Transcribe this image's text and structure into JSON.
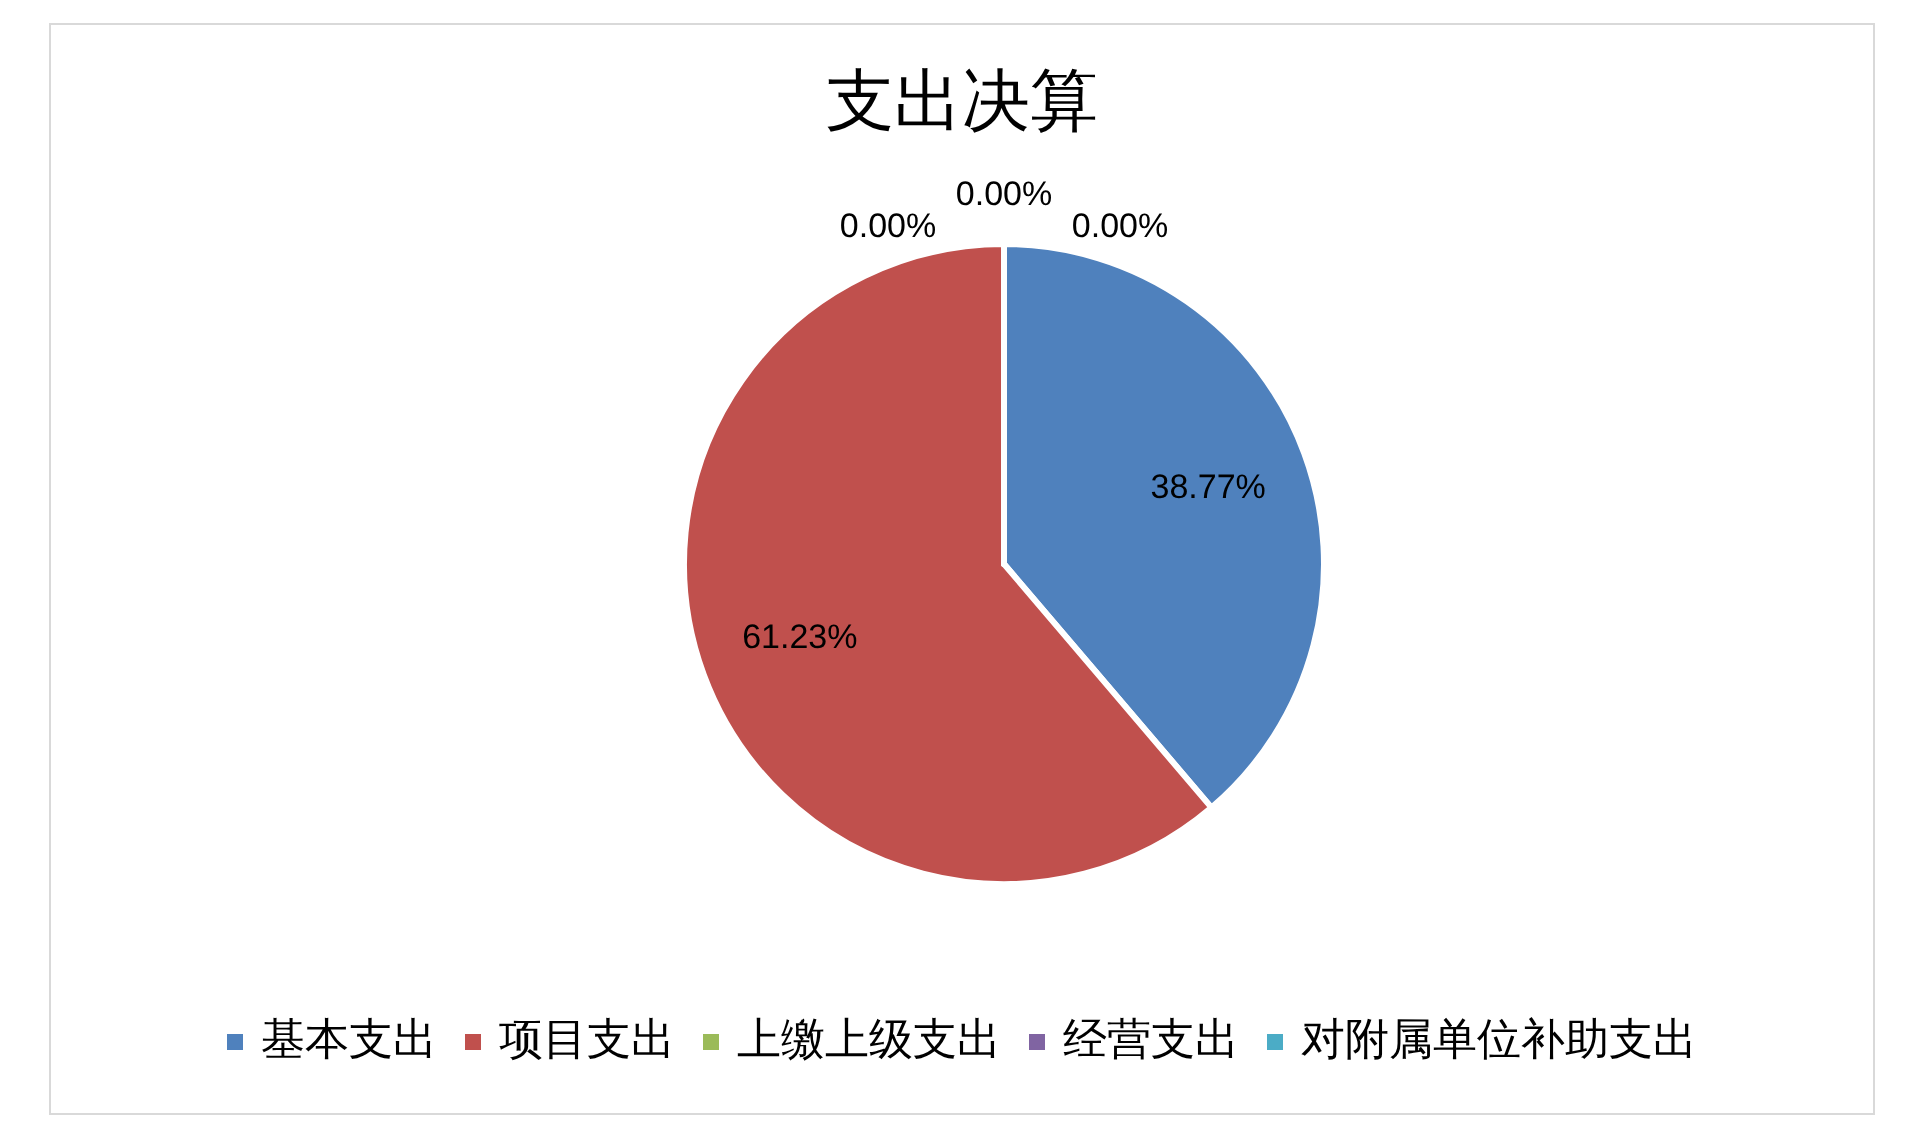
{
  "chart_data": {
    "type": "pie",
    "title": "支出决算",
    "categories": [
      "基本支出",
      "项目支出",
      "上缴上级支出",
      "经营支出",
      "对附属单位补助支出"
    ],
    "values": [
      38.77,
      61.23,
      0,
      0,
      0
    ],
    "colors": [
      "#4f81bd",
      "#c0504d",
      "#9bbb59",
      "#8064a2",
      "#4bacc6"
    ],
    "value_labels": [
      "38.77%",
      "61.23%",
      "0.00%",
      "0.00%",
      "0.00%"
    ],
    "legend": "bottom"
  }
}
